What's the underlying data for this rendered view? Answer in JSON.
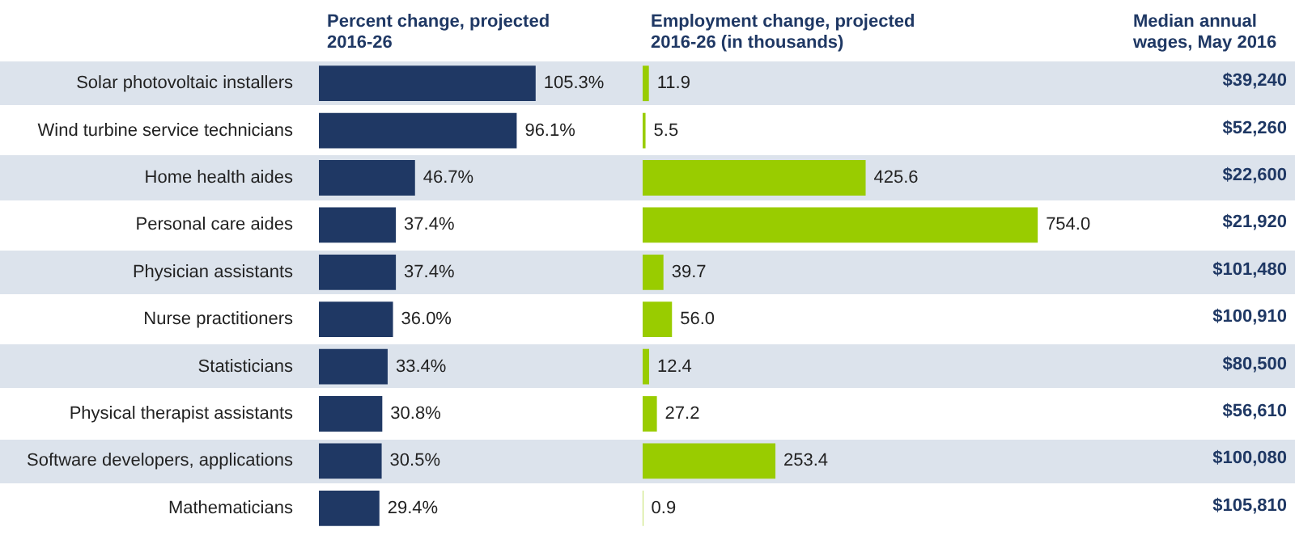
{
  "chart_data": [
    {
      "type": "bar",
      "orientation": "horizontal",
      "title": "Percent change, projected 2016-26",
      "categories": [
        "Solar photovoltaic installers",
        "Wind turbine service technicians",
        "Home health aides",
        "Personal care aides",
        "Physician assistants",
        "Nurse practitioners",
        "Statisticians",
        "Physical therapist assistants",
        "Software developers, applications",
        "Mathematicians"
      ],
      "values": [
        105.3,
        96.1,
        46.7,
        37.4,
        37.4,
        36.0,
        33.4,
        30.8,
        30.5,
        29.4
      ],
      "value_labels": [
        "105.3%",
        "96.1%",
        "46.7%",
        "37.4%",
        "37.4%",
        "36.0%",
        "33.4%",
        "30.8%",
        "30.5%",
        "29.4%"
      ],
      "color": "#1f3864",
      "tick_labels": "y"
    },
    {
      "type": "bar",
      "orientation": "horizontal",
      "title": "Employment change, projected 2016-26 (in thousands)",
      "categories": [
        null,
        null,
        null,
        null,
        null,
        null,
        null,
        null,
        null,
        null
      ],
      "values": [
        11.9,
        5.5,
        425.6,
        754.0,
        39.7,
        56.0,
        12.4,
        27.2,
        253.4,
        0.9
      ],
      "value_labels": [
        "11.9",
        "5.5",
        "425.6",
        "754.0",
        "39.7",
        "56.0",
        "12.4",
        "27.2",
        "253.4",
        "0.9"
      ],
      "color": "#99cc00",
      "tick_labels": false
    },
    {
      "type": "other",
      "title": "Median annual wages, May 2016",
      "annotations": [
        "$39,240",
        "$52,260",
        "$22,600",
        "$21,920",
        "$101,480",
        "$100,910",
        "$80,500",
        "$56,610",
        "$100,080",
        "$105,810"
      ]
    }
  ]
}
